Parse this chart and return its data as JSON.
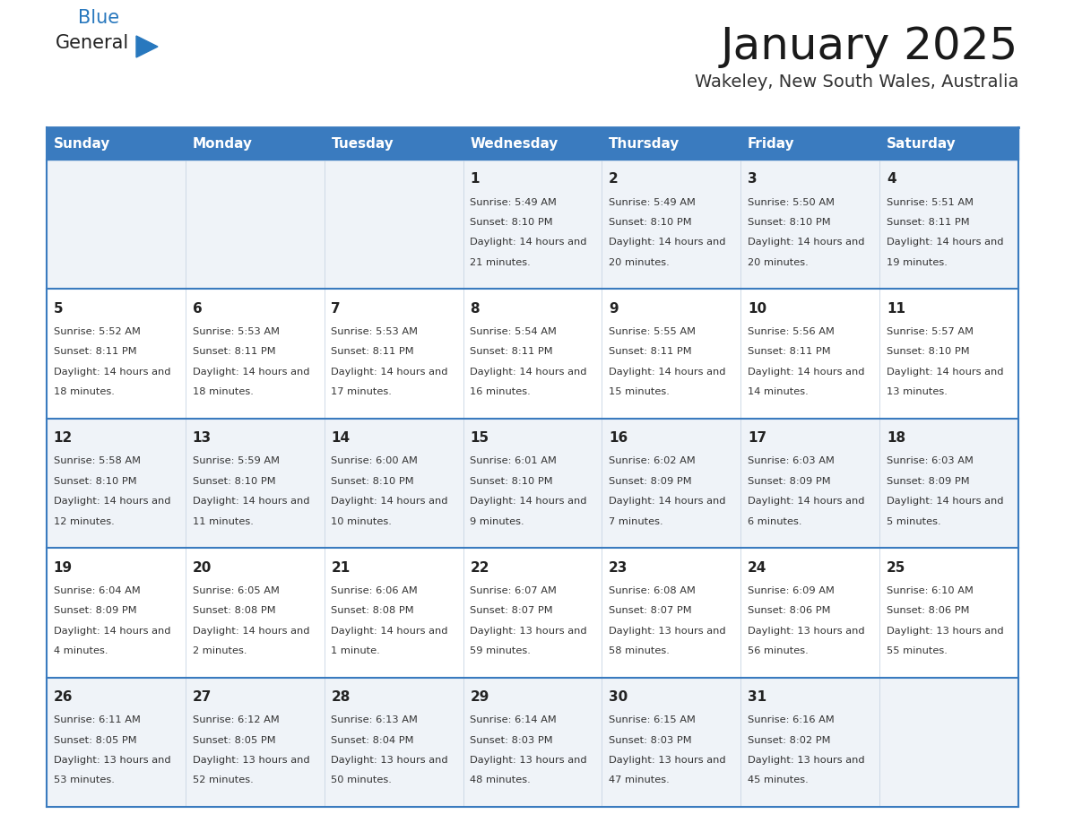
{
  "title": "January 2025",
  "subtitle": "Wakeley, New South Wales, Australia",
  "header_bg_color": "#3a7bbf",
  "header_text_color": "#ffffff",
  "odd_row_bg": "#eff3f8",
  "even_row_bg": "#ffffff",
  "border_color": "#3a7bbf",
  "title_color": "#1a1a1a",
  "subtitle_color": "#333333",
  "day_headers": [
    "Sunday",
    "Monday",
    "Tuesday",
    "Wednesday",
    "Thursday",
    "Friday",
    "Saturday"
  ],
  "cell_text_color": "#333333",
  "day_num_color": "#222222",
  "logo_general_color": "#222222",
  "logo_blue_color": "#2878be",
  "logo_triangle_color": "#2878be",
  "calendar": [
    [
      {
        "day": "",
        "sunrise": "",
        "sunset": "",
        "daylight": ""
      },
      {
        "day": "",
        "sunrise": "",
        "sunset": "",
        "daylight": ""
      },
      {
        "day": "",
        "sunrise": "",
        "sunset": "",
        "daylight": ""
      },
      {
        "day": "1",
        "sunrise": "5:49 AM",
        "sunset": "8:10 PM",
        "daylight": "14 hours and 21 minutes."
      },
      {
        "day": "2",
        "sunrise": "5:49 AM",
        "sunset": "8:10 PM",
        "daylight": "14 hours and 20 minutes."
      },
      {
        "day": "3",
        "sunrise": "5:50 AM",
        "sunset": "8:10 PM",
        "daylight": "14 hours and 20 minutes."
      },
      {
        "day": "4",
        "sunrise": "5:51 AM",
        "sunset": "8:11 PM",
        "daylight": "14 hours and 19 minutes."
      }
    ],
    [
      {
        "day": "5",
        "sunrise": "5:52 AM",
        "sunset": "8:11 PM",
        "daylight": "14 hours and 18 minutes."
      },
      {
        "day": "6",
        "sunrise": "5:53 AM",
        "sunset": "8:11 PM",
        "daylight": "14 hours and 18 minutes."
      },
      {
        "day": "7",
        "sunrise": "5:53 AM",
        "sunset": "8:11 PM",
        "daylight": "14 hours and 17 minutes."
      },
      {
        "day": "8",
        "sunrise": "5:54 AM",
        "sunset": "8:11 PM",
        "daylight": "14 hours and 16 minutes."
      },
      {
        "day": "9",
        "sunrise": "5:55 AM",
        "sunset": "8:11 PM",
        "daylight": "14 hours and 15 minutes."
      },
      {
        "day": "10",
        "sunrise": "5:56 AM",
        "sunset": "8:11 PM",
        "daylight": "14 hours and 14 minutes."
      },
      {
        "day": "11",
        "sunrise": "5:57 AM",
        "sunset": "8:10 PM",
        "daylight": "14 hours and 13 minutes."
      }
    ],
    [
      {
        "day": "12",
        "sunrise": "5:58 AM",
        "sunset": "8:10 PM",
        "daylight": "14 hours and 12 minutes."
      },
      {
        "day": "13",
        "sunrise": "5:59 AM",
        "sunset": "8:10 PM",
        "daylight": "14 hours and 11 minutes."
      },
      {
        "day": "14",
        "sunrise": "6:00 AM",
        "sunset": "8:10 PM",
        "daylight": "14 hours and 10 minutes."
      },
      {
        "day": "15",
        "sunrise": "6:01 AM",
        "sunset": "8:10 PM",
        "daylight": "14 hours and 9 minutes."
      },
      {
        "day": "16",
        "sunrise": "6:02 AM",
        "sunset": "8:09 PM",
        "daylight": "14 hours and 7 minutes."
      },
      {
        "day": "17",
        "sunrise": "6:03 AM",
        "sunset": "8:09 PM",
        "daylight": "14 hours and 6 minutes."
      },
      {
        "day": "18",
        "sunrise": "6:03 AM",
        "sunset": "8:09 PM",
        "daylight": "14 hours and 5 minutes."
      }
    ],
    [
      {
        "day": "19",
        "sunrise": "6:04 AM",
        "sunset": "8:09 PM",
        "daylight": "14 hours and 4 minutes."
      },
      {
        "day": "20",
        "sunrise": "6:05 AM",
        "sunset": "8:08 PM",
        "daylight": "14 hours and 2 minutes."
      },
      {
        "day": "21",
        "sunrise": "6:06 AM",
        "sunset": "8:08 PM",
        "daylight": "14 hours and 1 minute."
      },
      {
        "day": "22",
        "sunrise": "6:07 AM",
        "sunset": "8:07 PM",
        "daylight": "13 hours and 59 minutes."
      },
      {
        "day": "23",
        "sunrise": "6:08 AM",
        "sunset": "8:07 PM",
        "daylight": "13 hours and 58 minutes."
      },
      {
        "day": "24",
        "sunrise": "6:09 AM",
        "sunset": "8:06 PM",
        "daylight": "13 hours and 56 minutes."
      },
      {
        "day": "25",
        "sunrise": "6:10 AM",
        "sunset": "8:06 PM",
        "daylight": "13 hours and 55 minutes."
      }
    ],
    [
      {
        "day": "26",
        "sunrise": "6:11 AM",
        "sunset": "8:05 PM",
        "daylight": "13 hours and 53 minutes."
      },
      {
        "day": "27",
        "sunrise": "6:12 AM",
        "sunset": "8:05 PM",
        "daylight": "13 hours and 52 minutes."
      },
      {
        "day": "28",
        "sunrise": "6:13 AM",
        "sunset": "8:04 PM",
        "daylight": "13 hours and 50 minutes."
      },
      {
        "day": "29",
        "sunrise": "6:14 AM",
        "sunset": "8:03 PM",
        "daylight": "13 hours and 48 minutes."
      },
      {
        "day": "30",
        "sunrise": "6:15 AM",
        "sunset": "8:03 PM",
        "daylight": "13 hours and 47 minutes."
      },
      {
        "day": "31",
        "sunrise": "6:16 AM",
        "sunset": "8:02 PM",
        "daylight": "13 hours and 45 minutes."
      },
      {
        "day": "",
        "sunrise": "",
        "sunset": "",
        "daylight": ""
      }
    ]
  ]
}
